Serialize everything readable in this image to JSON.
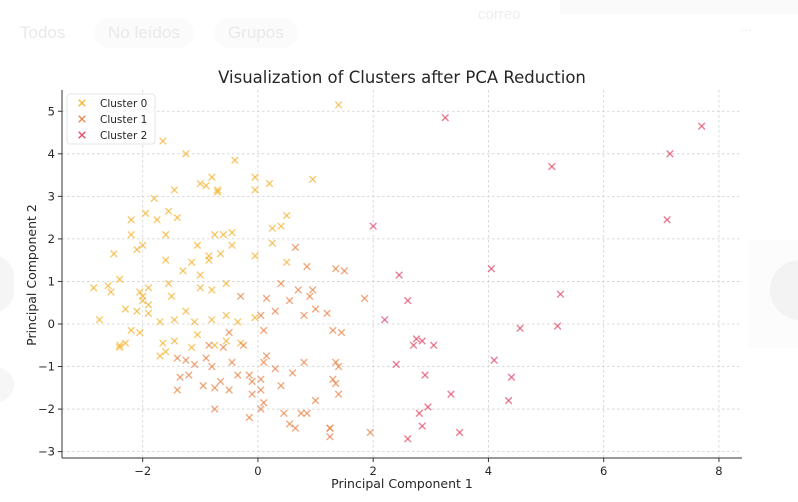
{
  "background_ui": {
    "tabs": [
      {
        "label": "Todos"
      },
      {
        "label": "No leídos"
      },
      {
        "label": "Grupos"
      }
    ],
    "top_text": "correo",
    "top_right_text": "..."
  },
  "chart_data": {
    "type": "scatter",
    "title": "Visualization of Clusters after PCA Reduction",
    "xlabel": "Principal Component 1",
    "ylabel": "Principal Component 2",
    "xlim": [
      -3.4,
      8.4
    ],
    "ylim": [
      -3.15,
      5.5
    ],
    "xticks": [
      -2,
      0,
      2,
      4,
      6,
      8
    ],
    "yticks": [
      -3,
      -2,
      -1,
      0,
      1,
      2,
      3,
      4,
      5
    ],
    "xtick_labels": [
      "−2",
      "0",
      "2",
      "4",
      "6",
      "8"
    ],
    "ytick_labels": [
      "−3",
      "−2",
      "−1",
      "0",
      "1",
      "2",
      "3",
      "4",
      "5"
    ],
    "grid": true,
    "legend_position": "top-left",
    "marker": "x",
    "series": [
      {
        "name": "Cluster 0",
        "color": "#f5b738",
        "points": [
          [
            1.4,
            5.15
          ],
          [
            -1.65,
            4.3
          ],
          [
            -1.25,
            4.0
          ],
          [
            -0.4,
            3.85
          ],
          [
            -1.0,
            3.3
          ],
          [
            -0.8,
            3.45
          ],
          [
            -0.7,
            3.1
          ],
          [
            -0.05,
            3.45
          ],
          [
            0.2,
            3.3
          ],
          [
            0.95,
            3.4
          ],
          [
            -1.45,
            3.15
          ],
          [
            -1.8,
            2.95
          ],
          [
            -0.9,
            3.25
          ],
          [
            -0.05,
            3.15
          ],
          [
            -0.7,
            3.15
          ],
          [
            -2.2,
            2.45
          ],
          [
            -1.95,
            2.6
          ],
          [
            -1.75,
            2.45
          ],
          [
            -1.55,
            2.65
          ],
          [
            -1.4,
            2.5
          ],
          [
            -2.2,
            2.1
          ],
          [
            -2.0,
            1.85
          ],
          [
            -1.6,
            2.1
          ],
          [
            -0.75,
            2.1
          ],
          [
            -0.6,
            2.1
          ],
          [
            -0.45,
            2.15
          ],
          [
            0.25,
            2.25
          ],
          [
            0.4,
            2.3
          ],
          [
            0.5,
            2.55
          ],
          [
            -2.5,
            1.65
          ],
          [
            -2.1,
            1.75
          ],
          [
            -1.6,
            1.5
          ],
          [
            -1.05,
            1.85
          ],
          [
            -0.85,
            1.5
          ],
          [
            -0.45,
            1.85
          ],
          [
            -0.65,
            1.65
          ],
          [
            -0.85,
            1.6
          ],
          [
            -0.05,
            1.6
          ],
          [
            0.5,
            1.45
          ],
          [
            0.25,
            1.9
          ],
          [
            -2.6,
            0.9
          ],
          [
            -2.85,
            0.85
          ],
          [
            -2.55,
            0.75
          ],
          [
            -2.4,
            1.05
          ],
          [
            -2.05,
            0.75
          ],
          [
            -1.9,
            0.85
          ],
          [
            -1.55,
            0.95
          ],
          [
            -1.3,
            1.25
          ],
          [
            -1.15,
            1.45
          ],
          [
            -1.0,
            1.15
          ],
          [
            -0.55,
            0.95
          ],
          [
            -2.0,
            0.55
          ],
          [
            -1.9,
            0.45
          ],
          [
            -1.5,
            0.65
          ],
          [
            -1.25,
            0.3
          ],
          [
            -1.0,
            0.85
          ],
          [
            -0.8,
            0.8
          ],
          [
            -2.75,
            0.1
          ],
          [
            -2.3,
            0.35
          ],
          [
            -2.1,
            0.3
          ],
          [
            -1.9,
            0.25
          ],
          [
            -1.7,
            0.05
          ],
          [
            -1.45,
            0.1
          ],
          [
            -1.1,
            0.05
          ],
          [
            -0.8,
            0.1
          ],
          [
            -0.55,
            0.2
          ],
          [
            -0.35,
            0.05
          ],
          [
            -0.05,
            0.15
          ],
          [
            -1.65,
            -0.45
          ],
          [
            -1.45,
            -0.4
          ],
          [
            -1.05,
            -0.25
          ],
          [
            -0.75,
            -0.5
          ],
          [
            -0.55,
            -0.4
          ],
          [
            -0.3,
            -0.45
          ],
          [
            -1.15,
            -0.55
          ],
          [
            -2.4,
            -0.5
          ],
          [
            -2.3,
            -0.45
          ],
          [
            -2.05,
            -0.2
          ],
          [
            -2.4,
            -0.55
          ],
          [
            -2.2,
            -0.15
          ],
          [
            -1.6,
            -0.65
          ],
          [
            -1.7,
            -0.75
          ],
          [
            -2.0,
            0.65
          ]
        ]
      },
      {
        "name": "Cluster 1",
        "color": "#ea8a52",
        "points": [
          [
            0.65,
            1.8
          ],
          [
            1.35,
            1.3
          ],
          [
            1.5,
            1.25
          ],
          [
            0.4,
            0.95
          ],
          [
            0.7,
            0.8
          ],
          [
            0.85,
            1.35
          ],
          [
            0.95,
            0.8
          ],
          [
            0.9,
            0.65
          ],
          [
            -0.3,
            0.65
          ],
          [
            0.15,
            0.6
          ],
          [
            0.3,
            0.3
          ],
          [
            0.55,
            0.55
          ],
          [
            1.0,
            0.35
          ],
          [
            1.2,
            0.25
          ],
          [
            1.3,
            -0.15
          ],
          [
            1.45,
            -0.2
          ],
          [
            1.85,
            0.6
          ],
          [
            0.8,
            0.2
          ],
          [
            0.05,
            0.2
          ],
          [
            0.1,
            -0.15
          ],
          [
            -0.25,
            -0.5
          ],
          [
            -0.5,
            -0.2
          ],
          [
            -0.6,
            -0.55
          ],
          [
            -0.85,
            -0.5
          ],
          [
            -0.9,
            -0.8
          ],
          [
            -1.1,
            -0.95
          ],
          [
            -1.25,
            -0.85
          ],
          [
            -1.4,
            -0.8
          ],
          [
            -0.8,
            -1.0
          ],
          [
            -0.45,
            -0.9
          ],
          [
            -0.35,
            -1.2
          ],
          [
            -0.15,
            -1.2
          ],
          [
            0.05,
            -1.3
          ],
          [
            0.1,
            -0.9
          ],
          [
            0.15,
            -0.75
          ],
          [
            -0.65,
            -1.35
          ],
          [
            -0.5,
            -1.55
          ],
          [
            -0.75,
            -1.5
          ],
          [
            -0.95,
            -1.45
          ],
          [
            -1.2,
            -1.2
          ],
          [
            -1.35,
            -1.25
          ],
          [
            -1.4,
            -1.55
          ],
          [
            -0.1,
            -1.65
          ],
          [
            0.05,
            -1.55
          ],
          [
            0.4,
            -1.45
          ],
          [
            0.6,
            -1.15
          ],
          [
            0.8,
            -0.9
          ],
          [
            1.3,
            -1.3
          ],
          [
            1.4,
            -1.0
          ],
          [
            1.35,
            -1.4
          ],
          [
            1.4,
            -1.65
          ],
          [
            0.1,
            -1.85
          ],
          [
            0.05,
            -2.0
          ],
          [
            -0.15,
            -2.2
          ],
          [
            0.45,
            -2.1
          ],
          [
            0.55,
            -2.35
          ],
          [
            0.65,
            -2.45
          ],
          [
            0.75,
            -2.1
          ],
          [
            0.85,
            -2.1
          ],
          [
            1.0,
            -1.8
          ],
          [
            1.25,
            -2.45
          ],
          [
            1.25,
            -2.65
          ],
          [
            1.95,
            -2.55
          ],
          [
            -0.1,
            -1.35
          ],
          [
            0.3,
            -1.05
          ],
          [
            1.35,
            -0.9
          ],
          [
            -0.75,
            -2.0
          ],
          [
            1.25,
            -2.45
          ]
        ]
      },
      {
        "name": "Cluster 2",
        "color": "#e24e6e",
        "points": [
          [
            3.25,
            4.85
          ],
          [
            7.7,
            4.65
          ],
          [
            7.15,
            4.0
          ],
          [
            5.1,
            3.7
          ],
          [
            7.1,
            2.45
          ],
          [
            2.0,
            2.3
          ],
          [
            2.45,
            1.15
          ],
          [
            4.05,
            1.3
          ],
          [
            5.25,
            0.7
          ],
          [
            2.6,
            0.55
          ],
          [
            2.2,
            0.1
          ],
          [
            4.55,
            -0.1
          ],
          [
            5.2,
            -0.05
          ],
          [
            2.75,
            -0.35
          ],
          [
            2.85,
            -0.4
          ],
          [
            2.7,
            -0.5
          ],
          [
            3.05,
            -0.5
          ],
          [
            4.1,
            -0.85
          ],
          [
            2.4,
            -0.95
          ],
          [
            2.9,
            -1.2
          ],
          [
            4.4,
            -1.25
          ],
          [
            3.35,
            -1.65
          ],
          [
            4.35,
            -1.8
          ],
          [
            2.95,
            -1.95
          ],
          [
            2.8,
            -2.1
          ],
          [
            2.85,
            -2.4
          ],
          [
            3.5,
            -2.55
          ],
          [
            2.6,
            -2.7
          ]
        ]
      }
    ]
  }
}
